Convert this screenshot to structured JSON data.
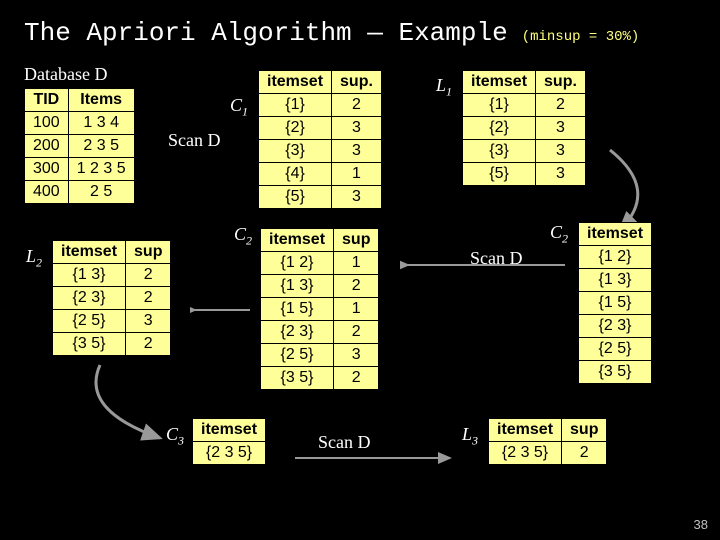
{
  "title": "The Apriori Algorithm — Example",
  "minsup": "(minsup = 30%)",
  "pagenum": "38",
  "labels": {
    "databaseD": "Database D",
    "C1": "C",
    "C1s": "1",
    "scanD1": "Scan D",
    "L1": "L",
    "L1s": "1",
    "C2a": "C",
    "C2as": "2",
    "C2b": "C",
    "C2bs": "2",
    "scanD2": "Scan D",
    "L2": "L",
    "L2s": "2",
    "C3": "C",
    "C3s": "3",
    "scanD3": "Scan D",
    "L3": "L",
    "L3s": "3"
  },
  "tables": {
    "d": {
      "cols": [
        "TID",
        "Items"
      ],
      "rows": [
        [
          "100",
          "1 3 4"
        ],
        [
          "200",
          "2 3 5"
        ],
        [
          "300",
          "1 2 3 5"
        ],
        [
          "400",
          "2 5"
        ]
      ]
    },
    "c1": {
      "cols": [
        "itemset",
        "sup."
      ],
      "rows": [
        [
          "{1}",
          "2"
        ],
        [
          "{2}",
          "3"
        ],
        [
          "{3}",
          "3"
        ],
        [
          "{4}",
          "1"
        ],
        [
          "{5}",
          "3"
        ]
      ]
    },
    "l1": {
      "cols": [
        "itemset",
        "sup."
      ],
      "rows": [
        [
          "{1}",
          "2"
        ],
        [
          "{2}",
          "3"
        ],
        [
          "{3}",
          "3"
        ],
        [
          "{5}",
          "3"
        ]
      ]
    },
    "c2a": {
      "cols": [
        "itemset",
        "sup"
      ],
      "rows": [
        [
          "{1 2}",
          "1"
        ],
        [
          "{1 3}",
          "2"
        ],
        [
          "{1 5}",
          "1"
        ],
        [
          "{2 3}",
          "2"
        ],
        [
          "{2 5}",
          "3"
        ],
        [
          "{3 5}",
          "2"
        ]
      ]
    },
    "c2b": {
      "cols": [
        "itemset"
      ],
      "rows": [
        [
          "{1 2}"
        ],
        [
          "{1 3}"
        ],
        [
          "{1 5}"
        ],
        [
          "{2 3}"
        ],
        [
          "{2 5}"
        ],
        [
          "{3 5}"
        ]
      ]
    },
    "l2": {
      "cols": [
        "itemset",
        "sup"
      ],
      "rows": [
        [
          "{1 3}",
          "2"
        ],
        [
          "{2 3}",
          "2"
        ],
        [
          "{2 5}",
          "3"
        ],
        [
          "{3 5}",
          "2"
        ]
      ]
    },
    "c3": {
      "cols": [
        "itemset"
      ],
      "rows": [
        [
          "{2 3 5}"
        ]
      ]
    },
    "l3": {
      "cols": [
        "itemset",
        "sup"
      ],
      "rows": [
        [
          "{2 3 5}",
          "2"
        ]
      ]
    }
  },
  "style": {
    "bg": "#000000",
    "tableFill": "#ffff99",
    "textWhite": "#ffffff",
    "arrowStroke": "#999999"
  }
}
